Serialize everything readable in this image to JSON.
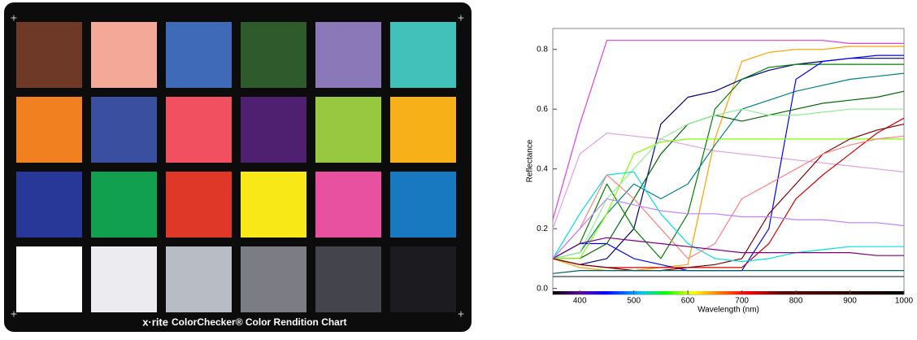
{
  "checker": {
    "brand": "x·rite",
    "caption": "ColorChecker® Color Rendition Chart",
    "patches": [
      "#6e3a27",
      "#f4a898",
      "#3f6ab8",
      "#2f5a2c",
      "#8a78b8",
      "#42c1bb",
      "#f08020",
      "#3a4fa0",
      "#f05060",
      "#502070",
      "#98c840",
      "#f8b018",
      "#283898",
      "#10a050",
      "#e03828",
      "#f8e818",
      "#e850a0",
      "#1878c0",
      "#ffffff",
      "#ececf0",
      "#b8bcc4",
      "#7c7c84",
      "#44444c",
      "#1c1c20"
    ]
  },
  "chart_data": {
    "type": "line",
    "xlabel": "Wavelength (nm)",
    "ylabel": "Reflectance",
    "x": [
      350,
      400,
      450,
      500,
      550,
      600,
      650,
      700,
      750,
      800,
      850,
      900,
      950,
      1000
    ],
    "xlim": [
      350,
      1000
    ],
    "xticks": [
      400,
      500,
      600,
      700,
      800,
      900,
      1000
    ],
    "ylim": [
      -0.02,
      0.87
    ],
    "yticks": [
      {
        "value": 0,
        "label": "0.0"
      },
      0.2,
      0.4,
      0.6,
      0.8
    ],
    "series": [
      {
        "color": "#e040e0",
        "values": [
          0.23,
          0.55,
          0.83,
          0.83,
          0.83,
          0.83,
          0.83,
          0.83,
          0.83,
          0.83,
          0.83,
          0.82,
          0.82,
          0.82
        ]
      },
      {
        "color": "#e0a0e0",
        "values": [
          0.2,
          0.45,
          0.52,
          0.51,
          0.5,
          0.48,
          0.46,
          0.45,
          0.44,
          0.43,
          0.42,
          0.41,
          0.4,
          0.39
        ]
      },
      {
        "color": "#ffa000",
        "values": [
          0.1,
          0.07,
          0.06,
          0.06,
          0.07,
          0.08,
          0.5,
          0.76,
          0.79,
          0.8,
          0.8,
          0.81,
          0.81,
          0.81
        ]
      },
      {
        "color": "#000080",
        "values": [
          0.1,
          0.08,
          0.1,
          0.2,
          0.55,
          0.64,
          0.66,
          0.7,
          0.73,
          0.75,
          0.76,
          0.77,
          0.77,
          0.77
        ]
      },
      {
        "color": "#008000",
        "values": [
          0.1,
          0.15,
          0.35,
          0.2,
          0.1,
          0.25,
          0.6,
          0.7,
          0.74,
          0.75,
          0.75,
          0.75,
          0.75,
          0.75
        ]
      },
      {
        "color": "#008080",
        "values": [
          0.1,
          0.12,
          0.25,
          0.35,
          0.3,
          0.35,
          0.48,
          0.6,
          0.63,
          0.66,
          0.68,
          0.7,
          0.71,
          0.72
        ]
      },
      {
        "color": "#0000ff",
        "values": [
          0.1,
          0.15,
          0.15,
          0.1,
          0.08,
          0.06,
          0.06,
          0.06,
          0.2,
          0.7,
          0.76,
          0.77,
          0.78,
          0.78
        ]
      },
      {
        "color": "#006400",
        "values": [
          0.1,
          0.1,
          0.15,
          0.3,
          0.45,
          0.55,
          0.58,
          0.56,
          0.58,
          0.6,
          0.62,
          0.63,
          0.64,
          0.66
        ]
      },
      {
        "color": "#80ff00",
        "values": [
          0.1,
          0.1,
          0.25,
          0.45,
          0.49,
          0.5,
          0.5,
          0.5,
          0.5,
          0.5,
          0.5,
          0.5,
          0.5,
          0.5
        ]
      },
      {
        "color": "#90ee90",
        "values": [
          0.1,
          0.12,
          0.3,
          0.4,
          0.5,
          0.55,
          0.58,
          0.6,
          0.58,
          0.58,
          0.59,
          0.6,
          0.6,
          0.6
        ]
      },
      {
        "color": "#d00000",
        "values": [
          0.1,
          0.08,
          0.07,
          0.07,
          0.07,
          0.07,
          0.07,
          0.07,
          0.15,
          0.3,
          0.38,
          0.45,
          0.52,
          0.57
        ]
      },
      {
        "color": "#800000",
        "values": [
          0.1,
          0.08,
          0.07,
          0.06,
          0.06,
          0.07,
          0.08,
          0.1,
          0.25,
          0.35,
          0.45,
          0.5,
          0.53,
          0.55
        ]
      },
      {
        "color": "#00e0e0",
        "values": [
          0.1,
          0.25,
          0.38,
          0.39,
          0.25,
          0.15,
          0.1,
          0.09,
          0.1,
          0.12,
          0.13,
          0.14,
          0.14,
          0.14
        ]
      },
      {
        "color": "#ff8080",
        "values": [
          0.1,
          0.2,
          0.38,
          0.3,
          0.2,
          0.1,
          0.15,
          0.3,
          0.35,
          0.4,
          0.45,
          0.48,
          0.5,
          0.51
        ]
      },
      {
        "color": "#800080",
        "values": [
          0.1,
          0.15,
          0.17,
          0.16,
          0.15,
          0.14,
          0.13,
          0.12,
          0.12,
          0.12,
          0.12,
          0.12,
          0.11,
          0.11
        ]
      },
      {
        "color": "#006060",
        "values": [
          0.05,
          0.06,
          0.06,
          0.06,
          0.06,
          0.06,
          0.06,
          0.06,
          0.06,
          0.06,
          0.06,
          0.06,
          0.06,
          0.06
        ]
      },
      {
        "color": "#c080ff",
        "values": [
          0.1,
          0.2,
          0.3,
          0.28,
          0.26,
          0.25,
          0.25,
          0.24,
          0.24,
          0.23,
          0.23,
          0.22,
          0.22,
          0.21
        ]
      },
      {
        "color": "#304050",
        "values": [
          0.04,
          0.04,
          0.04,
          0.04,
          0.04,
          0.04,
          0.04,
          0.04,
          0.04,
          0.04,
          0.04,
          0.04,
          0.04,
          0.04
        ]
      }
    ]
  }
}
